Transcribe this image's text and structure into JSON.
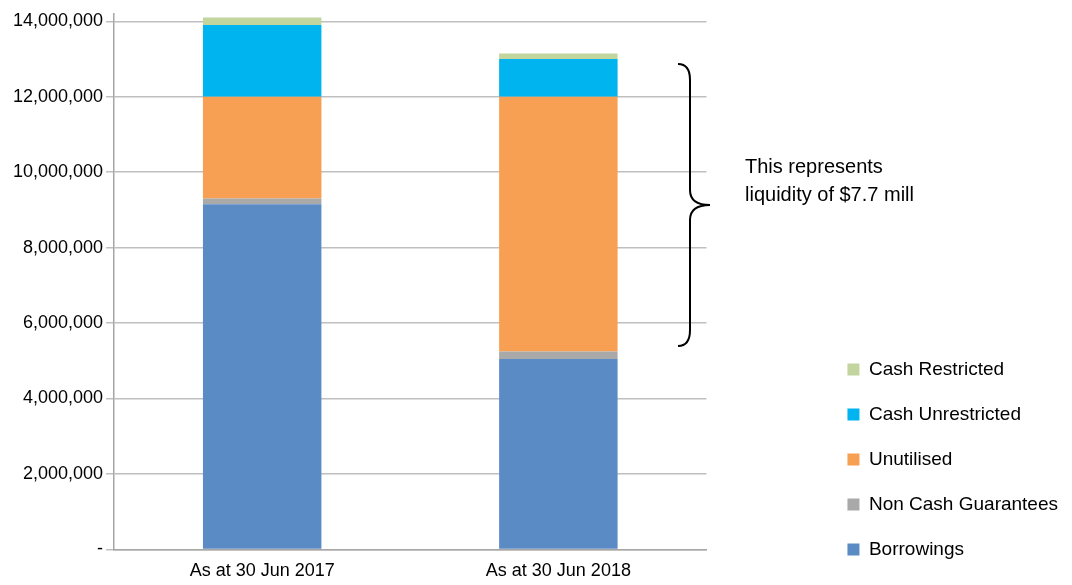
{
  "chart_data": {
    "type": "bar",
    "stacked": true,
    "categories": [
      "As at 30 Jun 2017",
      "As at 30 Jun 2018"
    ],
    "series": [
      {
        "name": "Borrowings",
        "color": "#5b8bc4",
        "values": [
          9150000,
          5050000
        ]
      },
      {
        "name": "Non Cash Guarantees",
        "color": "#a9a9a9",
        "values": [
          150000,
          200000
        ]
      },
      {
        "name": "Unutilised",
        "color": "#f79f52",
        "values": [
          2700000,
          6750000
        ]
      },
      {
        "name": "Cash Unrestricted",
        "color": "#00b5ef",
        "values": [
          1900000,
          1000000
        ]
      },
      {
        "name": "Cash Restricted",
        "color": "#c2d59e",
        "values": [
          200000,
          150000
        ]
      }
    ],
    "ylim": [
      0,
      14200000
    ],
    "yticks": [
      {
        "value": 0,
        "label": "-"
      },
      {
        "value": 2000000,
        "label": "2,000,000"
      },
      {
        "value": 4000000,
        "label": "4,000,000"
      },
      {
        "value": 6000000,
        "label": "6,000,000"
      },
      {
        "value": 8000000,
        "label": "8,000,000"
      },
      {
        "value": 10000000,
        "label": "10,000,000"
      },
      {
        "value": 12000000,
        "label": "12,000,000"
      },
      {
        "value": 14000000,
        "label": "14,000,000"
      }
    ],
    "grid": "y",
    "legend": "bottom right",
    "annotations": [
      "This represents liquidity of $7.7 mill"
    ]
  }
}
